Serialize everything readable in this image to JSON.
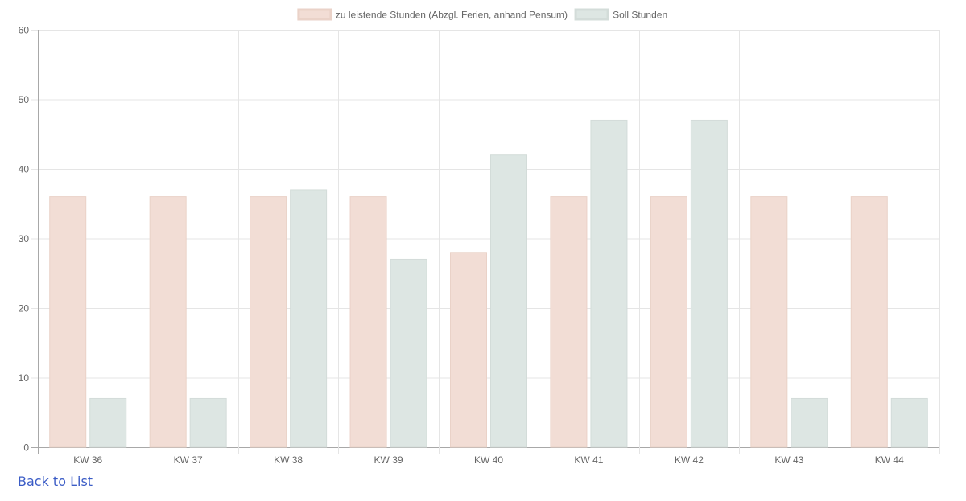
{
  "chart_data": {
    "type": "bar",
    "categories": [
      "KW 36",
      "KW 37",
      "KW 38",
      "KW 39",
      "KW 40",
      "KW 41",
      "KW 42",
      "KW 43",
      "KW 44"
    ],
    "series": [
      {
        "name": "zu leistende Stunden (Abzgl. Ferien, anhand Pensum)",
        "values": [
          36,
          36,
          36,
          36,
          28,
          36,
          36,
          36,
          36
        ],
        "color": "#f2ddd5"
      },
      {
        "name": "Soll Stunden",
        "values": [
          7,
          7,
          37,
          27,
          42,
          47,
          47,
          7,
          7
        ],
        "color": "#dde6e3"
      }
    ],
    "y_ticks": [
      "0",
      "10",
      "20",
      "30",
      "40",
      "50",
      "60"
    ],
    "ylim": [
      0,
      60
    ],
    "grid": true,
    "legend_position": "top-center"
  },
  "back_link": {
    "label": "Back to List"
  },
  "colors": {
    "series_1_border": "#ead2c8",
    "series_2_border": "#d3dcd9",
    "grid": "#e5e5e5",
    "axis": "#a8a8a8",
    "link": "#3b5cc6"
  }
}
